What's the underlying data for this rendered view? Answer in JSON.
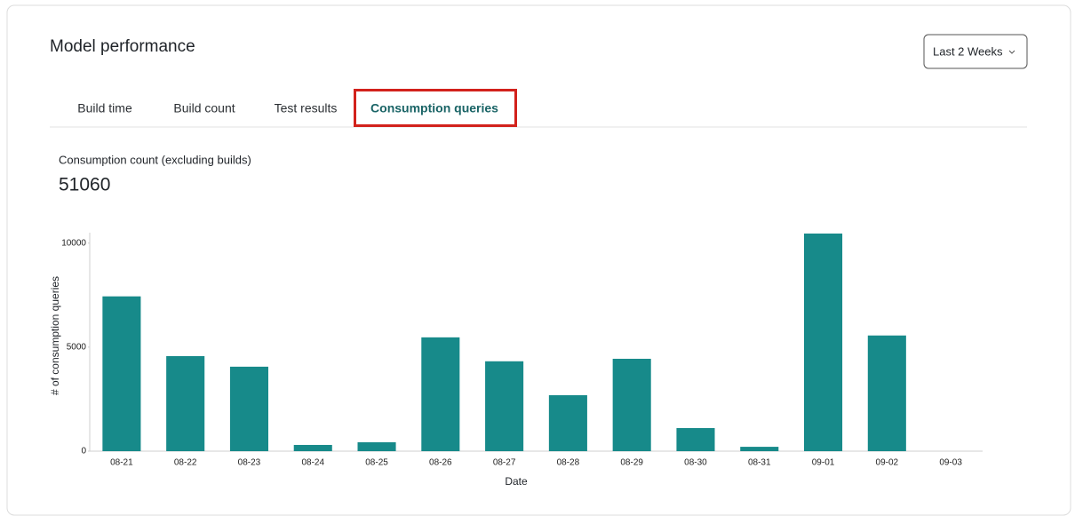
{
  "header": {
    "title": "Model performance",
    "range_selector": "Last 2 Weeks"
  },
  "tabs": [
    "Build time",
    "Build count",
    "Test results",
    "Consumption queries"
  ],
  "metric": {
    "label": "Consumption count (excluding builds)",
    "value": 51060
  },
  "chart_data": {
    "type": "bar",
    "ylabel": "# of consumption queries",
    "xlabel": "Date",
    "categories": [
      "08-21",
      "08-22",
      "08-23",
      "08-24",
      "08-25",
      "08-26",
      "08-27",
      "08-28",
      "08-29",
      "08-30",
      "08-31",
      "09-01",
      "09-02",
      "09-03"
    ],
    "values": [
      7440,
      4570,
      4060,
      300,
      430,
      5470,
      4320,
      2690,
      4440,
      1110,
      210,
      10460,
      5560,
      0
    ],
    "color": "#178a8a",
    "ylim": [
      0,
      10500
    ],
    "yticks": [
      0,
      5000,
      10000
    ],
    "grid": false
  }
}
